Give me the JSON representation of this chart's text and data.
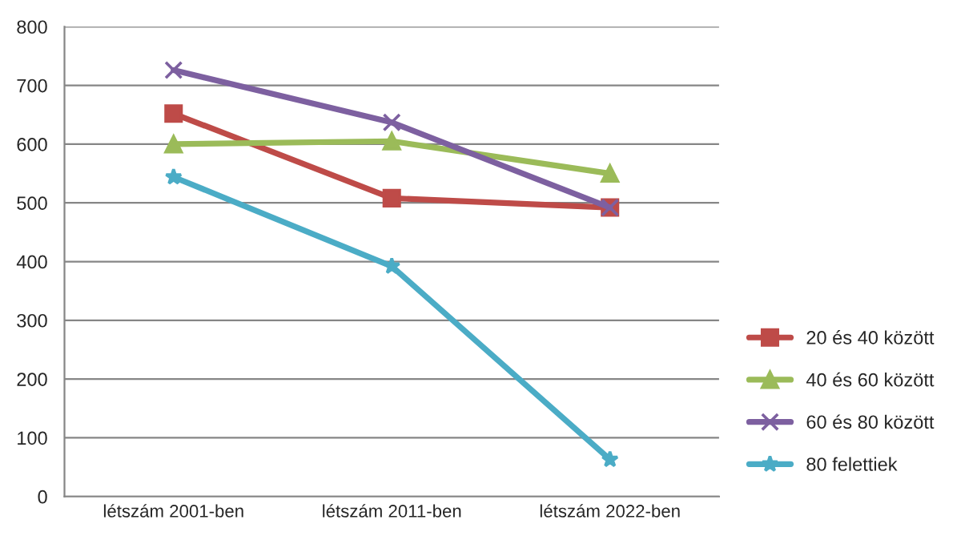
{
  "chart_data": {
    "type": "line",
    "categories": [
      "létszám 2001-ben",
      "létszám 2011-ben",
      "létszám 2022-ben"
    ],
    "series": [
      {
        "name": "20 és 40 között",
        "color": "#be4b48",
        "marker": "square",
        "values": [
          652,
          508,
          492
        ]
      },
      {
        "name": "40 és 60 között",
        "color": "#9bbb59",
        "marker": "triangle",
        "values": [
          600,
          605,
          550
        ]
      },
      {
        "name": "60 és 80 között",
        "color": "#7d60a0",
        "marker": "cross",
        "values": [
          726,
          637,
          492
        ]
      },
      {
        "name": "80 felettiek",
        "color": "#4bacc6",
        "marker": "star",
        "values": [
          544,
          392,
          63
        ]
      }
    ],
    "ylim": [
      0,
      800
    ],
    "yticks": [
      0,
      100,
      200,
      300,
      400,
      500,
      600,
      700,
      800
    ],
    "grid": "y",
    "legend": "right",
    "line_style": "solid"
  }
}
